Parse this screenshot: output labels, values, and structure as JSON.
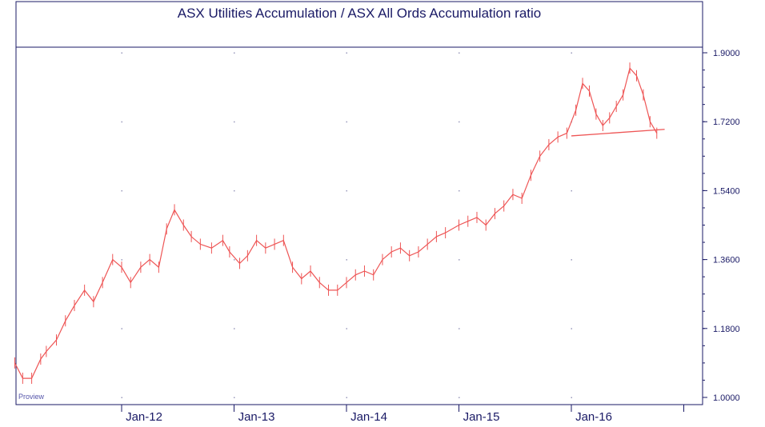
{
  "chart_data": {
    "type": "line",
    "title": "ASX Utilities Accumulation / ASX All Ords Accumulation ratio",
    "watermark": "Proview",
    "xlabel": "",
    "ylabel": "",
    "x_tick_labels": [
      "Jan-12",
      "Jan-13",
      "Jan-14",
      "Jan-15",
      "Jan-16"
    ],
    "x_tick_positions": [
      2012.0,
      2013.0,
      2014.0,
      2015.0,
      2016.0
    ],
    "x_range": [
      2011.05,
      2017.2
    ],
    "y_tick_labels": [
      "1.9000",
      "1.7200",
      "1.5400",
      "1.3600",
      "1.1800",
      "1.0000"
    ],
    "y_tick_values": [
      1.9,
      1.72,
      1.54,
      1.36,
      1.18,
      1.0
    ],
    "ylim": [
      0.987,
      1.924
    ],
    "grid": true,
    "legend": "none",
    "colors": {
      "series": "#ee5555",
      "frame": "#1a1a66",
      "grid": "#9999bb"
    },
    "series": [
      {
        "points": [
          [
            2011.05,
            1.09
          ],
          [
            2011.12,
            1.05
          ],
          [
            2011.2,
            1.05
          ],
          [
            2011.28,
            1.1
          ],
          [
            2011.33,
            1.12
          ],
          [
            2011.42,
            1.15
          ],
          [
            2011.5,
            1.2
          ],
          [
            2011.58,
            1.24
          ],
          [
            2011.67,
            1.28
          ],
          [
            2011.75,
            1.25
          ],
          [
            2011.83,
            1.3
          ],
          [
            2011.92,
            1.36
          ],
          [
            2012.0,
            1.34
          ],
          [
            2012.08,
            1.3
          ],
          [
            2012.17,
            1.34
          ],
          [
            2012.25,
            1.36
          ],
          [
            2012.33,
            1.34
          ],
          [
            2012.4,
            1.44
          ],
          [
            2012.47,
            1.49
          ],
          [
            2012.55,
            1.45
          ],
          [
            2012.62,
            1.42
          ],
          [
            2012.7,
            1.4
          ],
          [
            2012.8,
            1.39
          ],
          [
            2012.9,
            1.41
          ],
          [
            2012.96,
            1.38
          ],
          [
            2013.05,
            1.35
          ],
          [
            2013.12,
            1.37
          ],
          [
            2013.2,
            1.41
          ],
          [
            2013.28,
            1.39
          ],
          [
            2013.36,
            1.4
          ],
          [
            2013.44,
            1.41
          ],
          [
            2013.52,
            1.34
          ],
          [
            2013.6,
            1.31
          ],
          [
            2013.68,
            1.33
          ],
          [
            2013.76,
            1.3
          ],
          [
            2013.84,
            1.28
          ],
          [
            2013.92,
            1.28
          ],
          [
            2014.0,
            1.3
          ],
          [
            2014.08,
            1.32
          ],
          [
            2014.16,
            1.33
          ],
          [
            2014.24,
            1.32
          ],
          [
            2014.32,
            1.36
          ],
          [
            2014.4,
            1.38
          ],
          [
            2014.48,
            1.39
          ],
          [
            2014.56,
            1.37
          ],
          [
            2014.64,
            1.38
          ],
          [
            2014.72,
            1.4
          ],
          [
            2014.8,
            1.42
          ],
          [
            2014.88,
            1.43
          ],
          [
            2015.0,
            1.45
          ],
          [
            2015.08,
            1.46
          ],
          [
            2015.16,
            1.47
          ],
          [
            2015.24,
            1.45
          ],
          [
            2015.32,
            1.48
          ],
          [
            2015.4,
            1.5
          ],
          [
            2015.48,
            1.53
          ],
          [
            2015.56,
            1.52
          ],
          [
            2015.64,
            1.58
          ],
          [
            2015.72,
            1.63
          ],
          [
            2015.8,
            1.66
          ],
          [
            2015.88,
            1.68
          ],
          [
            2015.96,
            1.69
          ],
          [
            2016.04,
            1.75
          ],
          [
            2016.1,
            1.82
          ],
          [
            2016.16,
            1.8
          ],
          [
            2016.22,
            1.74
          ],
          [
            2016.28,
            1.71
          ],
          [
            2016.34,
            1.73
          ],
          [
            2016.4,
            1.76
          ],
          [
            2016.46,
            1.79
          ],
          [
            2016.52,
            1.86
          ],
          [
            2016.58,
            1.84
          ],
          [
            2016.64,
            1.79
          ],
          [
            2016.7,
            1.72
          ],
          [
            2016.76,
            1.69
          ]
        ]
      }
    ],
    "annotations": [
      {
        "type": "trendline",
        "x": [
          2016.0,
          2016.83
        ],
        "y": [
          1.683,
          1.7
        ]
      }
    ]
  }
}
